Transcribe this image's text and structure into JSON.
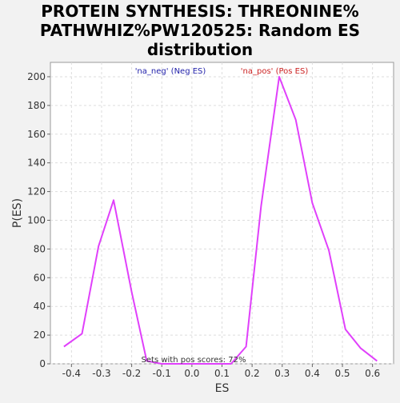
{
  "chart_data": {
    "type": "line",
    "title_lines": [
      "PROTEIN SYNTHESIS: THREONINE%",
      "PATHWHIZ%PW120525: Random ES",
      "distribution"
    ],
    "xlabel": "ES",
    "ylabel": "P(ES)",
    "xlim": [
      -0.47,
      0.67
    ],
    "ylim": [
      0,
      210
    ],
    "x_ticks": [
      -0.4,
      -0.3,
      -0.2,
      -0.1,
      0.0,
      0.1,
      0.2,
      0.3,
      0.4,
      0.5,
      0.6
    ],
    "x_tick_labels": [
      "-0.4",
      "-0.3",
      "-0.2",
      "-0.1",
      "0.0",
      "0.1",
      "0.2",
      "0.3",
      "0.4",
      "0.5",
      "0.6"
    ],
    "y_ticks": [
      0,
      20,
      40,
      60,
      80,
      100,
      120,
      140,
      160,
      180,
      200
    ],
    "y_tick_labels": [
      "0",
      "20",
      "40",
      "60",
      "80",
      "100",
      "120",
      "140",
      "160",
      "180",
      "200"
    ],
    "grid": true,
    "series": [
      {
        "name": "",
        "color": "#e040fb",
        "x": [
          -0.425,
          -0.365,
          -0.31,
          -0.26,
          -0.2,
          -0.15,
          -0.1,
          0.0,
          0.13,
          0.18,
          0.23,
          0.29,
          0.345,
          0.4,
          0.455,
          0.51,
          0.56,
          0.615
        ],
        "y": [
          12,
          21,
          82,
          114,
          50,
          2,
          0,
          0,
          0,
          12,
          110,
          200,
          170,
          112,
          79,
          24,
          11,
          2
        ]
      }
    ],
    "annotations": [
      {
        "id": "neg",
        "text": "'na_neg' (Neg ES)",
        "color": "#2222aa"
      },
      {
        "id": "pos",
        "text": "'na_pos' (Pos ES)",
        "color": "#cc2222"
      },
      {
        "id": "footer",
        "text": "Sets with pos scores: 72%",
        "color": "#333333"
      }
    ]
  }
}
